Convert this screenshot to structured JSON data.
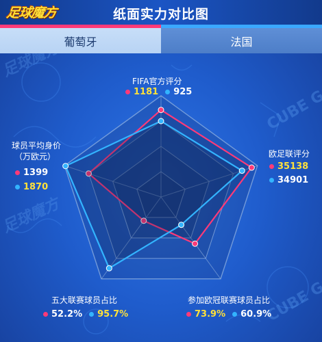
{
  "header": {
    "logo_text": "足球魔方",
    "title": "纸面实力对比图"
  },
  "teams": {
    "left": "葡萄牙",
    "right": "法国"
  },
  "colors": {
    "portugal": "#ff3a78",
    "france": "#33b4ff",
    "highlight": "#ffe13a"
  },
  "watermark": "CUBE GOAL",
  "chart_data": {
    "type": "radar",
    "series": [
      {
        "name": "葡萄牙",
        "color": "#ff3a78",
        "fractions": [
          0.86,
          0.94,
          0.57,
          0.29,
          0.75
        ]
      },
      {
        "name": "法国",
        "color": "#33b4ff",
        "fractions": [
          0.75,
          0.84,
          0.34,
          0.87,
          0.99
        ]
      }
    ],
    "axes": [
      {
        "label": "FIFA官方评分",
        "portugal": "1181",
        "france": "925",
        "highlight": "portugal"
      },
      {
        "label": "欧足联评分",
        "portugal": "35138",
        "france": "34901",
        "highlight": "portugal"
      },
      {
        "label": "参加欧冠联赛球员占比",
        "portugal": "73.9%",
        "france": "60.9%",
        "highlight": "portugal"
      },
      {
        "label": "五大联赛球员占比",
        "portugal": "52.2%",
        "france": "95.7%",
        "highlight": "france"
      },
      {
        "label": "球员平均身价",
        "label2": "（万欧元）",
        "portugal": "1399",
        "france": "1870",
        "highlight": "france"
      }
    ],
    "rings": 4
  }
}
